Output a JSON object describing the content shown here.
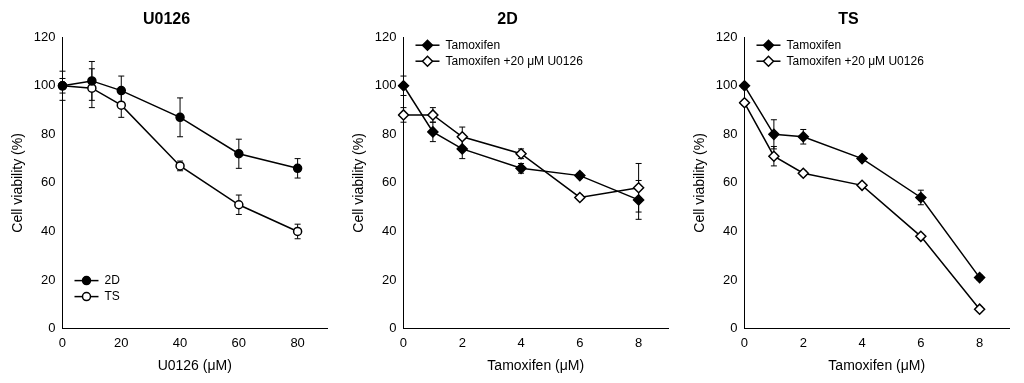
{
  "chart_data": [
    {
      "type": "line",
      "title": "U0126",
      "x_label": "U0126 (μM)",
      "y_label": "Cell viability (%)",
      "x": [
        0,
        10,
        20,
        40,
        60,
        80
      ],
      "xlim": [
        0,
        90
      ],
      "xticks": [
        0,
        20,
        40,
        60,
        80
      ],
      "ylim": [
        0,
        120
      ],
      "yticks": [
        0,
        20,
        40,
        60,
        80,
        100,
        120
      ],
      "grid": false,
      "legend": "lower left",
      "series": [
        {
          "name": "2D",
          "color": "#000000",
          "marker": "circle",
          "values": [
            100,
            102,
            98,
            87,
            72,
            66
          ],
          "errors": [
            6,
            8,
            6,
            8,
            6,
            4
          ]
        },
        {
          "name": "TS",
          "color": "#000000",
          "marker": "open-circle",
          "values": [
            100,
            99,
            92,
            67,
            51,
            40
          ],
          "errors": [
            3,
            8,
            5,
            2,
            4,
            3
          ]
        }
      ]
    },
    {
      "type": "line",
      "title": "2D",
      "x_label": "Tamoxifen (μM)",
      "y_label": "Cell viability (%)",
      "x": [
        0,
        1,
        2,
        4,
        6,
        8
      ],
      "xlim": [
        0,
        9
      ],
      "xticks": [
        0,
        2,
        4,
        6,
        8
      ],
      "ylim": [
        0,
        120
      ],
      "yticks": [
        0,
        20,
        40,
        60,
        80,
        100,
        120
      ],
      "grid": false,
      "legend": "upper left",
      "series": [
        {
          "name": "Tamoxifen",
          "color": "#000000",
          "marker": "diamond",
          "values": [
            100,
            81,
            74,
            66,
            63,
            53
          ],
          "errors": [
            4,
            4,
            4,
            2,
            1,
            8
          ]
        },
        {
          "name": "Tamoxifen +20 μM U0126",
          "color": "#000000",
          "marker": "open-diamond",
          "values": [
            88,
            88,
            79,
            72,
            54,
            58
          ],
          "errors": [
            3,
            3,
            4,
            2,
            1,
            10
          ]
        }
      ]
    },
    {
      "type": "line",
      "title": "TS",
      "x_label": "Tamoxifen (μM)",
      "y_label": "Cell viability (%)",
      "x": [
        0,
        1,
        2,
        4,
        6,
        8
      ],
      "xlim": [
        0,
        9
      ],
      "xticks": [
        0,
        2,
        4,
        6,
        8
      ],
      "ylim": [
        0,
        120
      ],
      "yticks": [
        0,
        20,
        40,
        60,
        80,
        100,
        120
      ],
      "grid": false,
      "legend": "upper left",
      "series": [
        {
          "name": "Tamoxifen",
          "color": "#000000",
          "marker": "diamond",
          "values": [
            100,
            80,
            79,
            70,
            54,
            21
          ],
          "errors": [
            1,
            6,
            3,
            1,
            3,
            1
          ]
        },
        {
          "name": "Tamoxifen +20 μM U0126",
          "color": "#000000",
          "marker": "open-diamond",
          "values": [
            93,
            71,
            64,
            59,
            38,
            8
          ],
          "errors": [
            1,
            4,
            1,
            1,
            1,
            1
          ]
        }
      ]
    }
  ]
}
